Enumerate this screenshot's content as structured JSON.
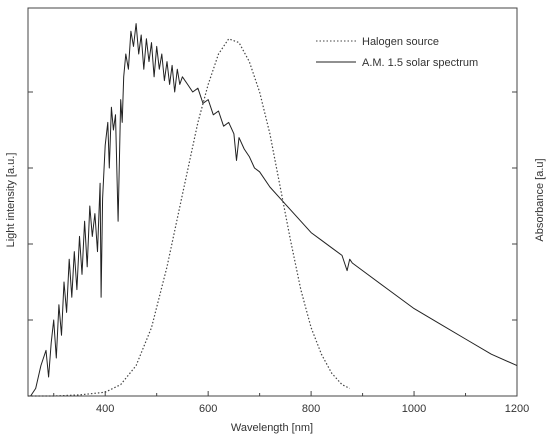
{
  "chart_data": {
    "type": "line",
    "xlabel": "Wavelength [nm]",
    "ylabel_left": "Light intensity [a.u.]",
    "ylabel_right": "Absorbance [a.u]",
    "xlim": [
      250,
      1200
    ],
    "ylim": [
      0,
      1.0
    ],
    "x_ticks": [
      400,
      600,
      800,
      1000,
      1200
    ],
    "x_tick_labels": [
      "400",
      "600",
      "800",
      "1000",
      "1200"
    ],
    "grid": false,
    "legend_position": "top-right",
    "series": [
      {
        "name": "Halogen source",
        "style": "dotted",
        "color": "#444444",
        "x": [
          250,
          300,
          350,
          400,
          430,
          460,
          490,
          520,
          550,
          580,
          600,
          620,
          640,
          660,
          680,
          700,
          720,
          740,
          760,
          780,
          800,
          820,
          840,
          860,
          875
        ],
        "y": [
          0.0,
          0.0,
          0.003,
          0.01,
          0.03,
          0.08,
          0.18,
          0.34,
          0.53,
          0.72,
          0.82,
          0.9,
          0.94,
          0.93,
          0.88,
          0.8,
          0.69,
          0.55,
          0.41,
          0.28,
          0.18,
          0.11,
          0.06,
          0.03,
          0.02
        ]
      },
      {
        "name": "A.M. 1.5 solar spectrum",
        "style": "solid",
        "color": "#222222",
        "x": [
          255,
          265,
          275,
          285,
          290,
          295,
          300,
          305,
          310,
          315,
          320,
          325,
          330,
          335,
          340,
          345,
          350,
          355,
          360,
          365,
          370,
          375,
          380,
          385,
          390,
          392,
          395,
          400,
          405,
          408,
          412,
          416,
          420,
          425,
          430,
          433,
          436,
          440,
          445,
          450,
          455,
          460,
          465,
          470,
          475,
          480,
          485,
          490,
          495,
          500,
          505,
          510,
          515,
          520,
          525,
          530,
          535,
          540,
          545,
          550,
          560,
          570,
          580,
          590,
          600,
          610,
          620,
          630,
          640,
          650,
          655,
          660,
          670,
          680,
          690,
          700,
          720,
          740,
          760,
          780,
          800,
          820,
          840,
          860,
          870,
          875,
          880,
          900,
          950,
          1000,
          1050,
          1100,
          1150,
          1200
        ],
        "y": [
          0.0,
          0.02,
          0.08,
          0.12,
          0.05,
          0.14,
          0.2,
          0.1,
          0.24,
          0.16,
          0.3,
          0.22,
          0.36,
          0.26,
          0.38,
          0.28,
          0.42,
          0.32,
          0.46,
          0.34,
          0.5,
          0.42,
          0.48,
          0.38,
          0.56,
          0.26,
          0.52,
          0.66,
          0.72,
          0.6,
          0.76,
          0.7,
          0.74,
          0.46,
          0.78,
          0.72,
          0.84,
          0.9,
          0.86,
          0.96,
          0.92,
          0.98,
          0.9,
          0.95,
          0.86,
          0.94,
          0.88,
          0.93,
          0.84,
          0.92,
          0.86,
          0.9,
          0.83,
          0.88,
          0.82,
          0.87,
          0.8,
          0.86,
          0.82,
          0.84,
          0.82,
          0.8,
          0.81,
          0.77,
          0.78,
          0.74,
          0.75,
          0.71,
          0.72,
          0.69,
          0.62,
          0.68,
          0.65,
          0.63,
          0.6,
          0.59,
          0.55,
          0.52,
          0.49,
          0.46,
          0.43,
          0.41,
          0.39,
          0.37,
          0.33,
          0.36,
          0.35,
          0.33,
          0.28,
          0.23,
          0.19,
          0.15,
          0.11,
          0.08
        ]
      }
    ]
  }
}
